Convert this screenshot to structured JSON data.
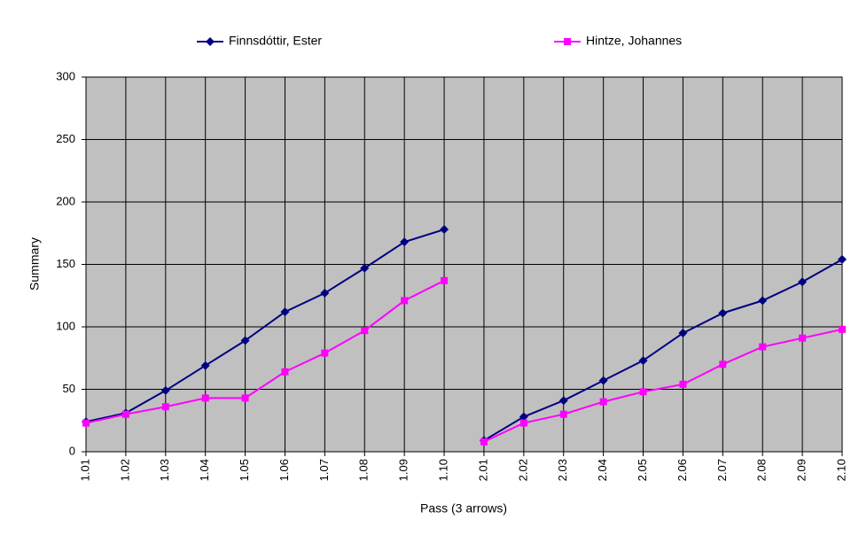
{
  "chart_data": {
    "type": "line",
    "x_label": "Pass (3 arrows)",
    "y_label": "Summary",
    "categories": [
      "1.01",
      "1.02",
      "1.03",
      "1.04",
      "1.05",
      "1.06",
      "1.07",
      "1.08",
      "1.09",
      "1.10",
      "2.01",
      "2.02",
      "2.03",
      "2.04",
      "2.05",
      "2.06",
      "2.07",
      "2.08",
      "2.09",
      "2.10"
    ],
    "series": [
      {
        "name": "Finnsdóttir, Ester",
        "color": "#000080",
        "marker": "diamond",
        "values": [
          24,
          31,
          49,
          69,
          89,
          112,
          127,
          147,
          168,
          178,
          9,
          28,
          41,
          57,
          73,
          95,
          111,
          121,
          136,
          154
        ]
      },
      {
        "name": "Hintze, Johannes",
        "color": "#ff00ff",
        "marker": "square",
        "values": [
          23,
          30,
          36,
          43,
          43,
          64,
          79,
          97,
          121,
          137,
          8,
          23,
          30,
          40,
          48,
          54,
          70,
          84,
          91,
          98
        ]
      }
    ],
    "ylim": [
      0,
      300
    ],
    "yticks": [
      0,
      50,
      100,
      150,
      200,
      250,
      300
    ],
    "grid": true,
    "legend": "top",
    "plot_background": "#c0c0c0"
  }
}
